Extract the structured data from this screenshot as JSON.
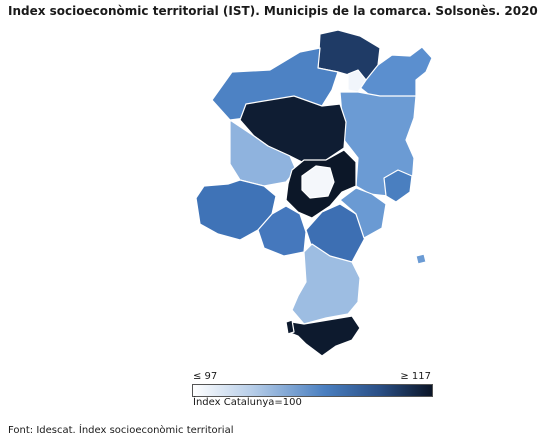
{
  "title": "Index socioeconòmic territorial (IST). Municipis de la comarca. Solsonès. 2020",
  "legend": {
    "min_label": "≤ 97",
    "max_label": "≥ 117",
    "reference_label": "Índex Catalunya=100",
    "scale_min": 97,
    "scale_max": 117,
    "colors": [
      "#ffffff",
      "#b6cde8",
      "#4a7fc0",
      "#2a4f86",
      "#0b1527"
    ]
  },
  "source": "Font: Idescat. Índex socioeconòmic territorial",
  "map": {
    "region": "Solsonès",
    "municipality_count": 15
  }
}
